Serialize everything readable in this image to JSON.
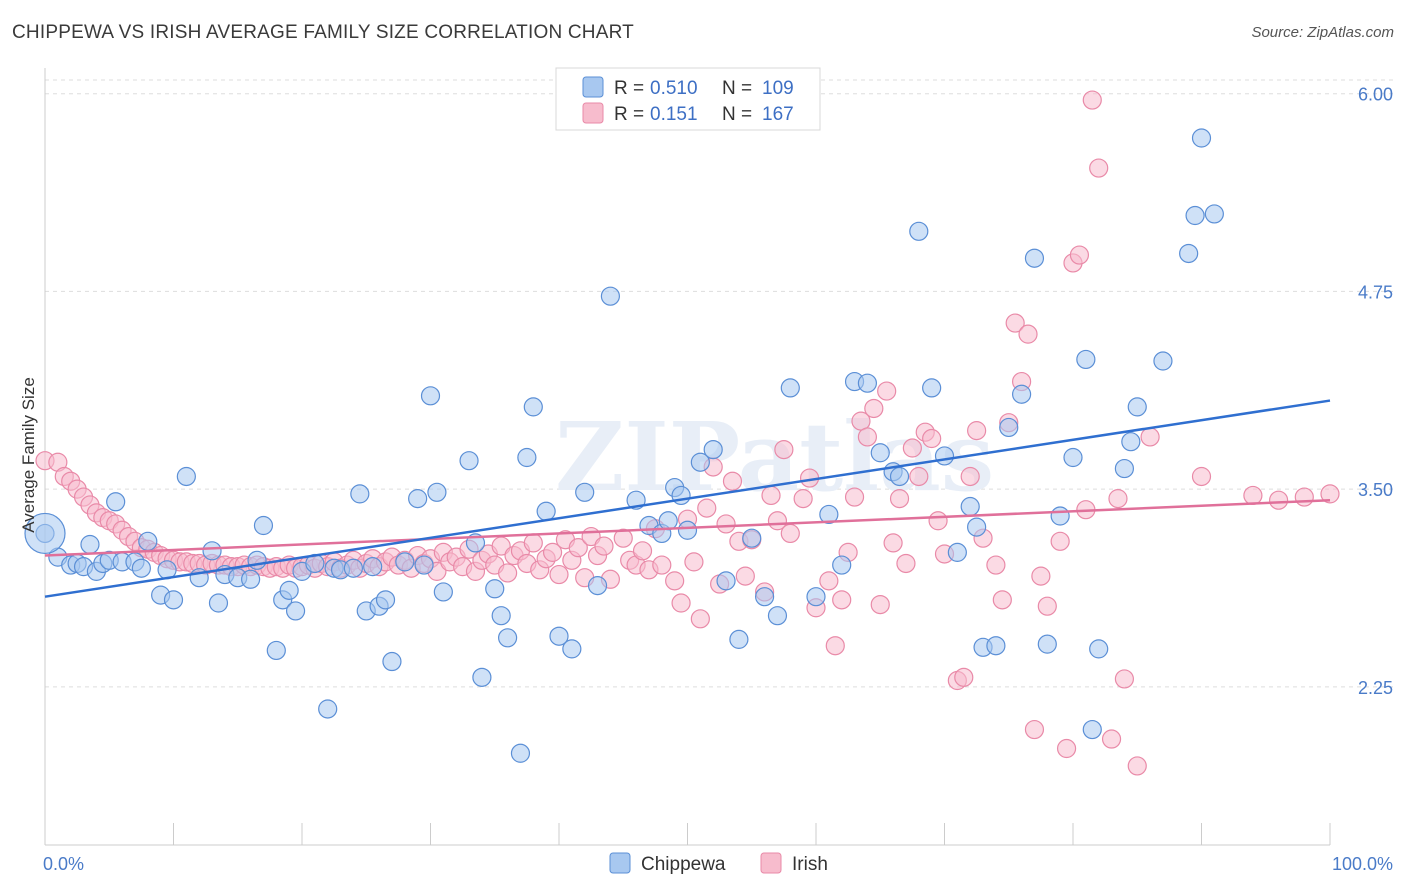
{
  "header": {
    "title": "CHIPPEWA VS IRISH AVERAGE FAMILY SIZE CORRELATION CHART",
    "source": "Source: ZipAtlas.com"
  },
  "colors": {
    "chippewa_fill": "#a8c8f0",
    "chippewa_stroke": "#5b8fd6",
    "chippewa_line": "#2f6fd0",
    "irish_fill": "#f7bccd",
    "irish_stroke": "#e98aa8",
    "irish_line": "#e0709a",
    "grid": "#dddddd",
    "axis_text": "#4a7bc8"
  },
  "legend": {
    "r_label": "R =",
    "n_label": "N =",
    "chippewa_r": "0.510",
    "chippewa_n": "109",
    "irish_r": "0.151",
    "irish_n": "167"
  },
  "watermark": "ZIPatlas",
  "chart_data": {
    "type": "scatter",
    "ylabel": "Average Family Size",
    "xlim": [
      0,
      100
    ],
    "ylim": [
      1.25,
      6.15
    ],
    "y_ticks": [
      2.25,
      3.5,
      4.75,
      6.0
    ],
    "y_tick_labels": [
      "2.25",
      "3.50",
      "4.75",
      "6.00"
    ],
    "x_tick_labels": [
      "0.0%",
      "100.0%"
    ],
    "grid": "horizontal dashed",
    "legend_position": "top-center",
    "series": [
      {
        "name": "Chippewa",
        "trend": [
          [
            0,
            2.82
          ],
          [
            100,
            4.06
          ]
        ],
        "points": [
          [
            0,
            3.22
          ],
          [
            1,
            3.07
          ],
          [
            2,
            3.02
          ],
          [
            2.5,
            3.03
          ],
          [
            3,
            3.01
          ],
          [
            3.5,
            3.15
          ],
          [
            4,
            2.98
          ],
          [
            4.5,
            3.03
          ],
          [
            5,
            3.05
          ],
          [
            5.5,
            3.42
          ],
          [
            6,
            3.04
          ],
          [
            7,
            3.04
          ],
          [
            7.5,
            3.0
          ],
          [
            8,
            3.17
          ],
          [
            9,
            2.83
          ],
          [
            9.5,
            2.99
          ],
          [
            10,
            2.8
          ],
          [
            11,
            3.58
          ],
          [
            12,
            2.94
          ],
          [
            13,
            3.11
          ],
          [
            13.5,
            2.78
          ],
          [
            14,
            2.96
          ],
          [
            15,
            2.94
          ],
          [
            16,
            2.93
          ],
          [
            16.5,
            3.05
          ],
          [
            17,
            3.27
          ],
          [
            18,
            2.48
          ],
          [
            18.5,
            2.8
          ],
          [
            19,
            2.86
          ],
          [
            19.5,
            2.73
          ],
          [
            20,
            2.98
          ],
          [
            21,
            3.03
          ],
          [
            22,
            2.11
          ],
          [
            22.5,
            3.0
          ],
          [
            23,
            2.99
          ],
          [
            24,
            3.0
          ],
          [
            24.5,
            3.47
          ],
          [
            25,
            2.73
          ],
          [
            25.5,
            3.01
          ],
          [
            26,
            2.76
          ],
          [
            26.5,
            2.8
          ],
          [
            27,
            2.41
          ],
          [
            28,
            3.04
          ],
          [
            29,
            3.44
          ],
          [
            29.5,
            3.02
          ],
          [
            30,
            4.09
          ],
          [
            30.5,
            3.48
          ],
          [
            31,
            2.85
          ],
          [
            33,
            3.68
          ],
          [
            33.5,
            3.16
          ],
          [
            34,
            2.31
          ],
          [
            35,
            2.87
          ],
          [
            35.5,
            2.7
          ],
          [
            36,
            2.56
          ],
          [
            37,
            1.83
          ],
          [
            37.5,
            3.7
          ],
          [
            38,
            4.02
          ],
          [
            39,
            3.36
          ],
          [
            40,
            2.57
          ],
          [
            41,
            2.49
          ],
          [
            42,
            3.48
          ],
          [
            43,
            2.89
          ],
          [
            44,
            4.72
          ],
          [
            46,
            3.43
          ],
          [
            47,
            3.27
          ],
          [
            48,
            3.22
          ],
          [
            48.5,
            3.3
          ],
          [
            49,
            3.51
          ],
          [
            49.5,
            3.46
          ],
          [
            50,
            3.24
          ],
          [
            51,
            3.67
          ],
          [
            52,
            3.75
          ],
          [
            53,
            2.92
          ],
          [
            54,
            2.55
          ],
          [
            55,
            3.19
          ],
          [
            56,
            2.82
          ],
          [
            57,
            2.7
          ],
          [
            58,
            4.14
          ],
          [
            60,
            2.82
          ],
          [
            61,
            3.34
          ],
          [
            62,
            3.02
          ],
          [
            63,
            4.18
          ],
          [
            64,
            4.17
          ],
          [
            65,
            3.73
          ],
          [
            66,
            3.61
          ],
          [
            66.5,
            3.58
          ],
          [
            68,
            5.13
          ],
          [
            69,
            4.14
          ],
          [
            70,
            3.71
          ],
          [
            71,
            3.1
          ],
          [
            72,
            3.39
          ],
          [
            72.5,
            3.26
          ],
          [
            73,
            2.5
          ],
          [
            74,
            2.51
          ],
          [
            75,
            3.89
          ],
          [
            76,
            4.1
          ],
          [
            77,
            4.96
          ],
          [
            78,
            2.52
          ],
          [
            79,
            3.33
          ],
          [
            80,
            3.7
          ],
          [
            81,
            4.32
          ],
          [
            81.5,
            1.98
          ],
          [
            82,
            2.49
          ],
          [
            84,
            3.63
          ],
          [
            84.5,
            3.8
          ],
          [
            85,
            4.02
          ],
          [
            87,
            4.31
          ],
          [
            89,
            4.99
          ],
          [
            89.5,
            5.23
          ],
          [
            90,
            5.72
          ],
          [
            91,
            5.24
          ]
        ]
      },
      {
        "name": "Irish",
        "trend": [
          [
            0,
            3.08
          ],
          [
            100,
            3.43
          ]
        ],
        "points": [
          [
            0,
            3.68
          ],
          [
            1,
            3.67
          ],
          [
            1.5,
            3.58
          ],
          [
            2,
            3.55
          ],
          [
            2.5,
            3.5
          ],
          [
            3,
            3.45
          ],
          [
            3.5,
            3.4
          ],
          [
            4,
            3.35
          ],
          [
            4.5,
            3.32
          ],
          [
            5,
            3.3
          ],
          [
            5.5,
            3.28
          ],
          [
            6,
            3.24
          ],
          [
            6.5,
            3.2
          ],
          [
            7,
            3.17
          ],
          [
            7.5,
            3.13
          ],
          [
            8,
            3.12
          ],
          [
            8.5,
            3.1
          ],
          [
            9,
            3.08
          ],
          [
            9.5,
            3.06
          ],
          [
            10,
            3.05
          ],
          [
            10.5,
            3.04
          ],
          [
            11,
            3.04
          ],
          [
            11.5,
            3.03
          ],
          [
            12,
            3.03
          ],
          [
            12.5,
            3.02
          ],
          [
            13,
            3.03
          ],
          [
            13.5,
            3.02
          ],
          [
            14,
            3.02
          ],
          [
            14.5,
            3.01
          ],
          [
            15,
            3.01
          ],
          [
            15.5,
            3.02
          ],
          [
            16,
            3.01
          ],
          [
            16.5,
            3.02
          ],
          [
            17,
            3.01
          ],
          [
            17.5,
            3.0
          ],
          [
            18,
            3.01
          ],
          [
            18.5,
            3.0
          ],
          [
            19,
            3.02
          ],
          [
            19.5,
            3.0
          ],
          [
            20,
            3.01
          ],
          [
            20.5,
            3.02
          ],
          [
            21,
            3.0
          ],
          [
            21.5,
            3.03
          ],
          [
            22,
            3.01
          ],
          [
            22.5,
            3.04
          ],
          [
            23,
            3.0
          ],
          [
            23.5,
            3.02
          ],
          [
            24,
            3.05
          ],
          [
            24.5,
            3.0
          ],
          [
            25,
            3.03
          ],
          [
            25.5,
            3.06
          ],
          [
            26,
            3.01
          ],
          [
            26.5,
            3.04
          ],
          [
            27,
            3.07
          ],
          [
            27.5,
            3.02
          ],
          [
            28,
            3.05
          ],
          [
            28.5,
            3.0
          ],
          [
            29,
            3.08
          ],
          [
            29.5,
            3.03
          ],
          [
            30,
            3.06
          ],
          [
            30.5,
            2.98
          ],
          [
            31,
            3.1
          ],
          [
            31.5,
            3.04
          ],
          [
            32,
            3.07
          ],
          [
            32.5,
            3.01
          ],
          [
            33,
            3.12
          ],
          [
            33.5,
            2.98
          ],
          [
            34,
            3.05
          ],
          [
            34.5,
            3.09
          ],
          [
            35,
            3.02
          ],
          [
            35.5,
            3.14
          ],
          [
            36,
            2.97
          ],
          [
            36.5,
            3.08
          ],
          [
            37,
            3.11
          ],
          [
            37.5,
            3.03
          ],
          [
            38,
            3.16
          ],
          [
            38.5,
            2.99
          ],
          [
            39,
            3.06
          ],
          [
            39.5,
            3.1
          ],
          [
            40,
            2.96
          ],
          [
            40.5,
            3.18
          ],
          [
            41,
            3.05
          ],
          [
            41.5,
            3.13
          ],
          [
            42,
            2.94
          ],
          [
            42.5,
            3.2
          ],
          [
            43,
            3.08
          ],
          [
            43.5,
            3.14
          ],
          [
            44,
            2.93
          ],
          [
            45,
            3.19
          ],
          [
            45.5,
            3.05
          ],
          [
            46,
            3.02
          ],
          [
            46.5,
            3.11
          ],
          [
            47,
            2.99
          ],
          [
            47.5,
            3.25
          ],
          [
            48,
            3.02
          ],
          [
            49,
            2.92
          ],
          [
            49.5,
            2.78
          ],
          [
            50,
            3.31
          ],
          [
            50.5,
            3.04
          ],
          [
            51,
            2.68
          ],
          [
            51.5,
            3.38
          ],
          [
            52,
            3.64
          ],
          [
            52.5,
            2.9
          ],
          [
            53,
            3.28
          ],
          [
            53.5,
            3.55
          ],
          [
            54,
            3.17
          ],
          [
            54.5,
            2.95
          ],
          [
            55,
            3.18
          ],
          [
            56,
            2.85
          ],
          [
            56.5,
            3.46
          ],
          [
            57,
            3.3
          ],
          [
            57.5,
            3.75
          ],
          [
            58,
            3.22
          ],
          [
            59,
            3.44
          ],
          [
            59.5,
            3.57
          ],
          [
            60,
            2.75
          ],
          [
            61,
            2.92
          ],
          [
            61.5,
            2.51
          ],
          [
            62,
            2.8
          ],
          [
            62.5,
            3.1
          ],
          [
            63,
            3.45
          ],
          [
            63.5,
            3.93
          ],
          [
            64,
            3.83
          ],
          [
            64.5,
            4.01
          ],
          [
            65,
            2.77
          ],
          [
            65.5,
            4.12
          ],
          [
            66,
            3.16
          ],
          [
            66.5,
            3.44
          ],
          [
            67,
            3.03
          ],
          [
            67.5,
            3.76
          ],
          [
            68,
            3.58
          ],
          [
            68.5,
            3.86
          ],
          [
            69,
            3.82
          ],
          [
            69.5,
            3.3
          ],
          [
            70,
            3.09
          ],
          [
            71,
            2.29
          ],
          [
            71.5,
            2.31
          ],
          [
            72,
            3.58
          ],
          [
            72.5,
            3.87
          ],
          [
            73,
            3.19
          ],
          [
            74,
            3.02
          ],
          [
            74.5,
            2.8
          ],
          [
            75,
            3.92
          ],
          [
            75.5,
            4.55
          ],
          [
            76,
            4.18
          ],
          [
            76.5,
            4.48
          ],
          [
            77,
            1.98
          ],
          [
            77.5,
            2.95
          ],
          [
            78,
            2.76
          ],
          [
            79,
            3.17
          ],
          [
            79.5,
            1.86
          ],
          [
            80,
            4.93
          ],
          [
            80.5,
            4.98
          ],
          [
            81,
            3.37
          ],
          [
            81.5,
            5.96
          ],
          [
            82,
            5.53
          ],
          [
            83,
            1.92
          ],
          [
            83.5,
            3.44
          ],
          [
            84,
            2.3
          ],
          [
            85,
            1.75
          ],
          [
            86,
            3.83
          ],
          [
            90,
            3.58
          ],
          [
            94,
            3.46
          ],
          [
            96,
            3.43
          ],
          [
            98,
            3.45
          ],
          [
            100,
            3.47
          ]
        ]
      }
    ]
  },
  "bottom_legend": {
    "chippewa": "Chippewa",
    "irish": "Irish"
  }
}
